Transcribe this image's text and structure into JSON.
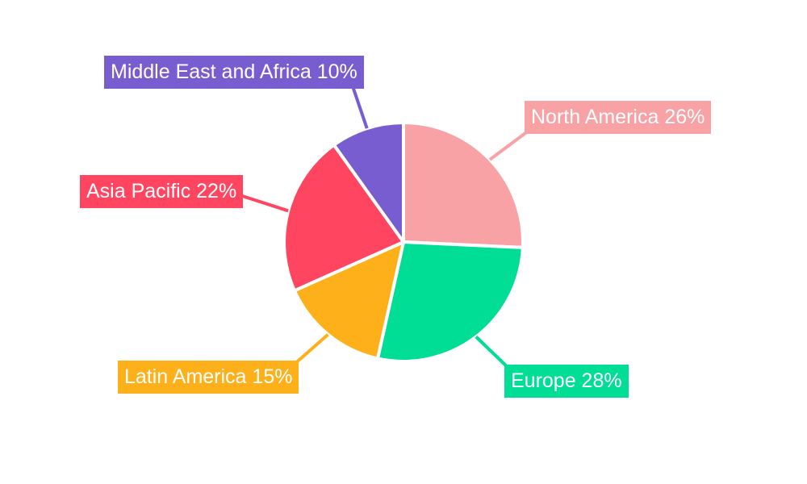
{
  "chart_data": {
    "type": "pie",
    "categories": [
      "North America",
      "Europe",
      "Latin America",
      "Asia Pacific",
      "Middle East and Africa"
    ],
    "values": [
      26,
      28,
      15,
      22,
      10
    ],
    "unit": "%",
    "labels": [
      "North America 26%",
      "Europe 28%",
      "Latin America 15%",
      "Asia Pacific 22%",
      "Middle East and Africa 10%"
    ],
    "colors": [
      "#F9A2A6",
      "#00DD94",
      "#FDB019",
      "#FF4560",
      "#775DD0"
    ],
    "label_text_color": "#FFFFFF",
    "slice_gap_color": "#FFFFFF",
    "background": "#FFFFFF",
    "title": "",
    "legend_position": "callout-labels",
    "start_angle_deg": 0,
    "direction": "clockwise"
  }
}
